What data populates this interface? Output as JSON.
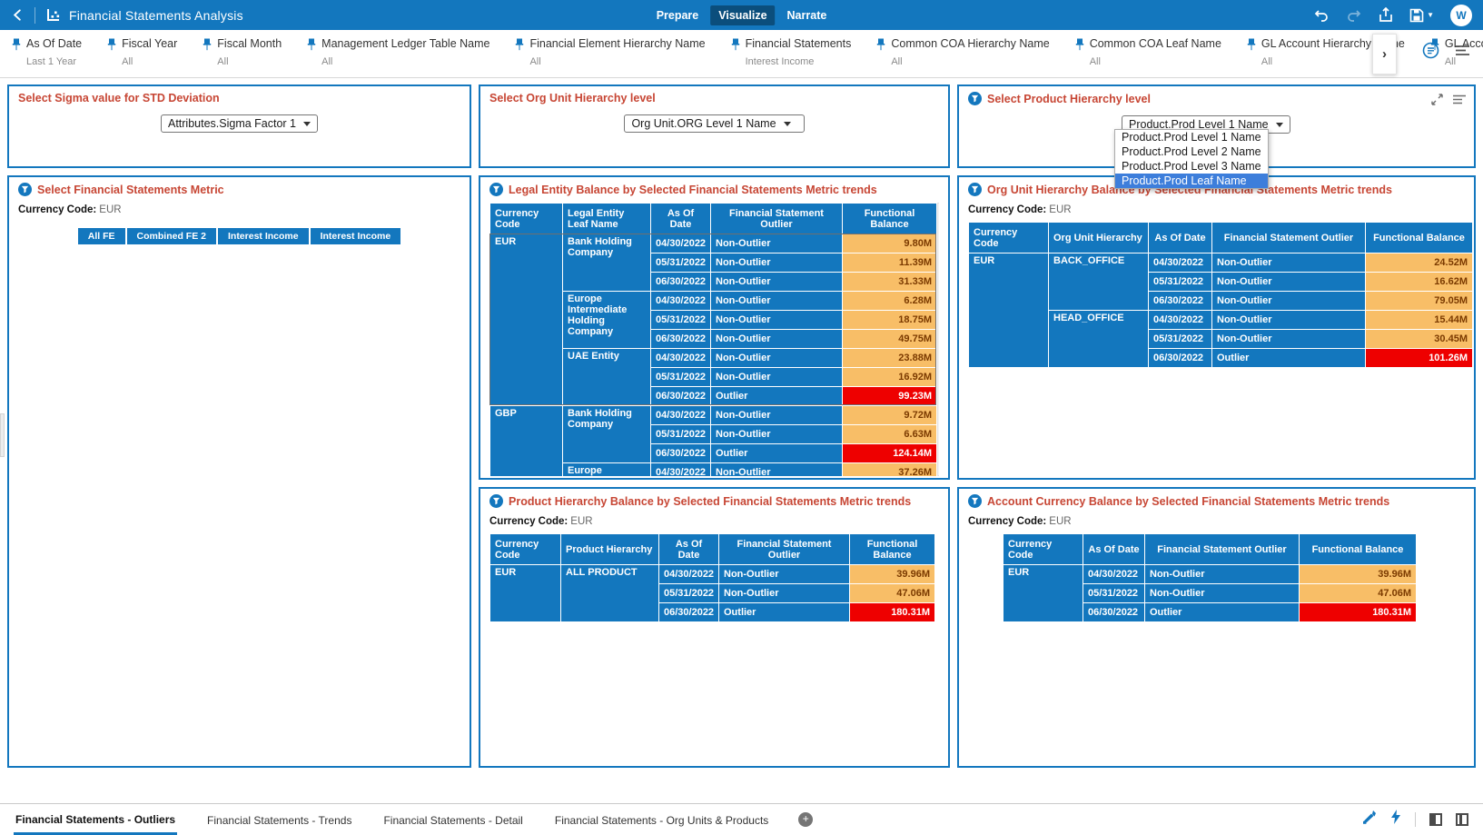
{
  "topbar": {
    "title": "Financial Statements Analysis",
    "modes": [
      {
        "label": "Prepare",
        "active": false
      },
      {
        "label": "Visualize",
        "active": true
      },
      {
        "label": "Narrate",
        "active": false
      }
    ],
    "avatar_initial": "W"
  },
  "filterbar": {
    "filters": [
      {
        "label": "As Of Date",
        "value": "Last 1 Year"
      },
      {
        "label": "Fiscal Year",
        "value": "All"
      },
      {
        "label": "Fiscal Month",
        "value": "All"
      },
      {
        "label": "Management Ledger Table Name",
        "value": "All"
      },
      {
        "label": "Financial Element Hierarchy Name",
        "value": "All"
      },
      {
        "label": "Financial Statements",
        "value": "Interest Income"
      },
      {
        "label": "Common COA Hierarchy Name",
        "value": "All"
      },
      {
        "label": "Common COA Leaf Name",
        "value": "All"
      },
      {
        "label": "GL Account Hierarchy Name",
        "value": "All"
      },
      {
        "label": "GL Account",
        "value": "All"
      }
    ],
    "expand_chevron": "›"
  },
  "selectors": {
    "sigma": {
      "title": "Select Sigma value for STD Deviation",
      "value": "Attributes.Sigma Factor 1"
    },
    "org": {
      "title": "Select Org Unit Hierarchy level",
      "value": "Org Unit.ORG Level 1 Name"
    },
    "product": {
      "title": "Select Product Hierarchy level",
      "value": "Product.Prod Level 1 Name",
      "options": [
        "Product.Prod Level 1 Name",
        "Product.Prod Level 2 Name",
        "Product.Prod Level 3 Name",
        "Product.Prod Leaf Name"
      ],
      "selected_option": "Product.Prod Leaf Name"
    }
  },
  "metric_panel": {
    "title": "Select Financial Statements Metric",
    "currency_label": "Currency Code:",
    "currency_value": "EUR",
    "buttons": [
      "All FE",
      "Combined FE 2",
      "Interest Income",
      "Interest Income"
    ]
  },
  "tables": {
    "legal": {
      "title": "Legal Entity Balance by Selected Financial Statements Metric trends",
      "headers": [
        "Currency Code",
        "Legal Entity Leaf Name",
        "As Of Date",
        "Financial Statement Outlier",
        "Functional Balance"
      ],
      "rows": [
        [
          {
            "t": "EUR",
            "rs": 9,
            "c": "dim"
          },
          {
            "t": "Bank Holding Company",
            "rs": 3,
            "c": "dim2"
          },
          {
            "t": "04/30/2022",
            "c": "date"
          },
          {
            "t": "Non-Outlier",
            "c": "out"
          },
          {
            "t": "9.80M",
            "c": "val"
          }
        ],
        [
          {
            "t": "05/31/2022",
            "c": "date"
          },
          {
            "t": "Non-Outlier",
            "c": "out"
          },
          {
            "t": "11.39M",
            "c": "val"
          }
        ],
        [
          {
            "t": "06/30/2022",
            "c": "date"
          },
          {
            "t": "Non-Outlier",
            "c": "out"
          },
          {
            "t": "31.33M",
            "c": "val"
          }
        ],
        [
          {
            "t": "Europe Intermediate Holding Company",
            "rs": 3,
            "c": "dim2"
          },
          {
            "t": "04/30/2022",
            "c": "date"
          },
          {
            "t": "Non-Outlier",
            "c": "out"
          },
          {
            "t": "6.28M",
            "c": "val"
          }
        ],
        [
          {
            "t": "05/31/2022",
            "c": "date"
          },
          {
            "t": "Non-Outlier",
            "c": "out"
          },
          {
            "t": "18.75M",
            "c": "val"
          }
        ],
        [
          {
            "t": "06/30/2022",
            "c": "date"
          },
          {
            "t": "Non-Outlier",
            "c": "out"
          },
          {
            "t": "49.75M",
            "c": "val"
          }
        ],
        [
          {
            "t": "UAE Entity",
            "rs": 3,
            "c": "dim2"
          },
          {
            "t": "04/30/2022",
            "c": "date"
          },
          {
            "t": "Non-Outlier",
            "c": "out"
          },
          {
            "t": "23.88M",
            "c": "val"
          }
        ],
        [
          {
            "t": "05/31/2022",
            "c": "date"
          },
          {
            "t": "Non-Outlier",
            "c": "out"
          },
          {
            "t": "16.92M",
            "c": "val"
          }
        ],
        [
          {
            "t": "06/30/2022",
            "c": "date"
          },
          {
            "t": "Outlier",
            "c": "out"
          },
          {
            "t": "99.23M",
            "c": "redval"
          }
        ],
        [
          {
            "t": "GBP",
            "rs": 4,
            "c": "dim"
          },
          {
            "t": "Bank Holding Company",
            "rs": 3,
            "c": "dim2"
          },
          {
            "t": "04/30/2022",
            "c": "date"
          },
          {
            "t": "Non-Outlier",
            "c": "out"
          },
          {
            "t": "9.72M",
            "c": "val"
          }
        ],
        [
          {
            "t": "05/31/2022",
            "c": "date"
          },
          {
            "t": "Non-Outlier",
            "c": "out"
          },
          {
            "t": "6.63M",
            "c": "val"
          }
        ],
        [
          {
            "t": "06/30/2022",
            "c": "date"
          },
          {
            "t": "Outlier",
            "c": "out"
          },
          {
            "t": "124.14M",
            "c": "redval"
          }
        ],
        [
          {
            "t": "Europe",
            "rs": 1,
            "c": "dim2"
          },
          {
            "t": "04/30/2022",
            "c": "date"
          },
          {
            "t": "Non-Outlier",
            "c": "out"
          },
          {
            "t": "37.26M",
            "c": "val"
          }
        ]
      ]
    },
    "org": {
      "title": "Org Unit Hierarchy Balance by Selected Financial Statements Metric trends",
      "currency_label": "Currency Code:",
      "currency_value": "EUR",
      "headers": [
        "Currency Code",
        "Org Unit Hierarchy",
        "As Of Date",
        "Financial Statement Outlier",
        "Functional Balance"
      ],
      "rows": [
        [
          {
            "t": "EUR",
            "rs": 6,
            "c": "dim"
          },
          {
            "t": "BACK_OFFICE",
            "rs": 3,
            "c": "dim2"
          },
          {
            "t": "04/30/2022",
            "c": "date"
          },
          {
            "t": "Non-Outlier",
            "c": "out"
          },
          {
            "t": "24.52M",
            "c": "val"
          }
        ],
        [
          {
            "t": "05/31/2022",
            "c": "date"
          },
          {
            "t": "Non-Outlier",
            "c": "out"
          },
          {
            "t": "16.62M",
            "c": "val"
          }
        ],
        [
          {
            "t": "06/30/2022",
            "c": "date"
          },
          {
            "t": "Non-Outlier",
            "c": "out"
          },
          {
            "t": "79.05M",
            "c": "val"
          }
        ],
        [
          {
            "t": "HEAD_OFFICE",
            "rs": 3,
            "c": "dim2"
          },
          {
            "t": "04/30/2022",
            "c": "date"
          },
          {
            "t": "Non-Outlier",
            "c": "out"
          },
          {
            "t": "15.44M",
            "c": "val"
          }
        ],
        [
          {
            "t": "05/31/2022",
            "c": "date"
          },
          {
            "t": "Non-Outlier",
            "c": "out"
          },
          {
            "t": "30.45M",
            "c": "val"
          }
        ],
        [
          {
            "t": "06/30/2022",
            "c": "date"
          },
          {
            "t": "Outlier",
            "c": "out"
          },
          {
            "t": "101.26M",
            "c": "redval"
          }
        ]
      ]
    },
    "product": {
      "title": "Product Hierarchy Balance by Selected Financial Statements Metric trends",
      "currency_label": "Currency Code:",
      "currency_value": "EUR",
      "headers": [
        "Currency Code",
        "Product Hierarchy",
        "As Of Date",
        "Financial Statement Outlier",
        "Functional Balance"
      ],
      "rows": [
        [
          {
            "t": "EUR",
            "rs": 3,
            "c": "dim"
          },
          {
            "t": "ALL PRODUCT",
            "rs": 3,
            "c": "dim2"
          },
          {
            "t": "04/30/2022",
            "c": "date"
          },
          {
            "t": "Non-Outlier",
            "c": "out"
          },
          {
            "t": "39.96M",
            "c": "val"
          }
        ],
        [
          {
            "t": "05/31/2022",
            "c": "date"
          },
          {
            "t": "Non-Outlier",
            "c": "out"
          },
          {
            "t": "47.06M",
            "c": "val"
          }
        ],
        [
          {
            "t": "06/30/2022",
            "c": "date"
          },
          {
            "t": "Outlier",
            "c": "out"
          },
          {
            "t": "180.31M",
            "c": "redval"
          }
        ]
      ]
    },
    "account": {
      "title": "Account Currency Balance by Selected Financial Statements Metric trends",
      "currency_label": "Currency Code:",
      "currency_value": "EUR",
      "headers": [
        "Currency Code",
        "As Of Date",
        "Financial Statement Outlier",
        "Functional Balance"
      ],
      "rows": [
        [
          {
            "t": "EUR",
            "rs": 3,
            "c": "dim"
          },
          {
            "t": "04/30/2022",
            "c": "date"
          },
          {
            "t": "Non-Outlier",
            "c": "out"
          },
          {
            "t": "39.96M",
            "c": "val"
          }
        ],
        [
          {
            "t": "05/31/2022",
            "c": "date"
          },
          {
            "t": "Non-Outlier",
            "c": "out"
          },
          {
            "t": "47.06M",
            "c": "val"
          }
        ],
        [
          {
            "t": "06/30/2022",
            "c": "date"
          },
          {
            "t": "Outlier",
            "c": "out"
          },
          {
            "t": "180.31M",
            "c": "redval"
          }
        ]
      ]
    }
  },
  "bottombar": {
    "tabs": [
      {
        "label": "Financial Statements - Outliers",
        "active": true
      },
      {
        "label": "Financial Statements - Trends",
        "active": false
      },
      {
        "label": "Financial Statements - Detail",
        "active": false
      },
      {
        "label": "Financial Statements - Org Units & Products",
        "active": false
      }
    ]
  }
}
